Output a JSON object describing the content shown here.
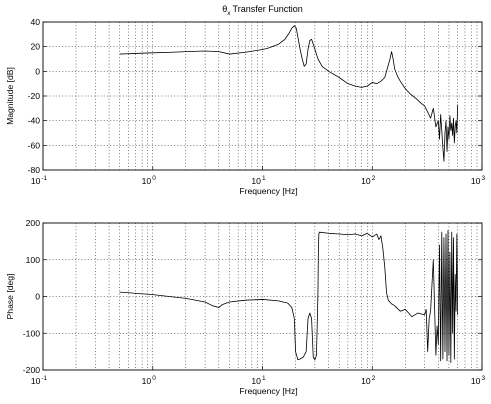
{
  "chart_data": [
    {
      "type": "line",
      "title": "θ",
      "title_subscript": "x",
      "title_suffix": "Transfer Function",
      "xlabel": "Frequency [Hz]",
      "ylabel": "Magnitude [dB]",
      "xscale": "log",
      "xlim": [
        0.1,
        1000
      ],
      "ylim": [
        -80,
        40
      ],
      "grid": true,
      "x_tick_labels": [
        {
          "base": "10",
          "exp": "-1",
          "value": 0.1
        },
        {
          "base": "10",
          "exp": "0",
          "value": 1
        },
        {
          "base": "10",
          "exp": "1",
          "value": 10
        },
        {
          "base": "10",
          "exp": "2",
          "value": 100
        },
        {
          "base": "10",
          "exp": "3",
          "value": 1000
        }
      ],
      "y_ticks": [
        40,
        20,
        0,
        -20,
        -40,
        -60,
        -80
      ],
      "series": [
        {
          "x": [
            0.5,
            0.7,
            1.0,
            1.5,
            2.0,
            3.0,
            4.0,
            5.0,
            7.0,
            9.0,
            11.0,
            14.0,
            16.0,
            17.5,
            18.5,
            19.5,
            20.3,
            21.0,
            22.0,
            23.0,
            24.0,
            25.0,
            26.0,
            27.0,
            28.0,
            29.0,
            30.0,
            32.0,
            35.0,
            40.0,
            50.0,
            60.0,
            70.0,
            80.0,
            90.0,
            100.0,
            110.0,
            120.0,
            130.0,
            140.0,
            145.0,
            150.0,
            155.0,
            160.0,
            170.0,
            180.0,
            200.0,
            220.0,
            250.0,
            280.0,
            300.0,
            320.0,
            340.0,
            360.0,
            380.0,
            400.0,
            410.0,
            420.0,
            430.0,
            440.0,
            450.0,
            460.0,
            470.0,
            480.0,
            490.0,
            500.0,
            510.0,
            520.0,
            530.0,
            540.0,
            550.0,
            560.0,
            570.0,
            580.0,
            590.0,
            600.0
          ],
          "y": [
            14,
            14.5,
            15,
            15.5,
            16,
            16.5,
            16,
            14,
            15.5,
            17,
            18.5,
            22,
            26,
            31,
            35,
            37,
            35,
            28,
            18,
            10,
            4,
            6,
            18,
            25,
            26,
            22,
            18,
            10,
            4,
            0,
            -5,
            -10,
            -12,
            -13,
            -12,
            -9,
            -10,
            -8,
            -5,
            5,
            10,
            16,
            10,
            2,
            -4,
            -8,
            -14,
            -18,
            -22,
            -26,
            -28,
            -33,
            -38,
            -30,
            -45,
            -40,
            -55,
            -35,
            -48,
            -62,
            -73,
            -50,
            -40,
            -65,
            -45,
            -55,
            -36,
            -48,
            -42,
            -52,
            -38,
            -58,
            -45,
            -40,
            -50,
            -27
          ]
        }
      ]
    },
    {
      "type": "line",
      "xlabel": "Frequency [Hz]",
      "ylabel": "Phase [deg]",
      "xscale": "log",
      "xlim": [
        0.1,
        1000
      ],
      "ylim": [
        -200,
        200
      ],
      "grid": true,
      "x_tick_labels": [
        {
          "base": "10",
          "exp": "-1",
          "value": 0.1
        },
        {
          "base": "10",
          "exp": "0",
          "value": 1
        },
        {
          "base": "10",
          "exp": "1",
          "value": 10
        },
        {
          "base": "10",
          "exp": "2",
          "value": 100
        },
        {
          "base": "10",
          "exp": "3",
          "value": 1000
        }
      ],
      "y_ticks": [
        200,
        100,
        0,
        -100,
        -200
      ],
      "series": [
        {
          "x": [
            0.5,
            1.0,
            2.0,
            3.0,
            3.5,
            4.0,
            4.3,
            5.0,
            7.0,
            10.0,
            14.0,
            17.0,
            18.5,
            19.5,
            20.0,
            21.0,
            22.0,
            23.5,
            25.0,
            26.0,
            27.0,
            28.0,
            29.0,
            30.0,
            31.0,
            31.5,
            32.0,
            32.3,
            32.6,
            33.0,
            40.0,
            50.0,
            60.0,
            70.0,
            80.0,
            90.0,
            100.0,
            110.0,
            115.0,
            120.0,
            125.0,
            130.0,
            135.0,
            140.0,
            150.0,
            160.0,
            180.0,
            200.0,
            230.0,
            260.0,
            300.0,
            310.0,
            320.0,
            330.0,
            340.0,
            360.0,
            380.0,
            390.0,
            400.0,
            410.0,
            420.0,
            430.0,
            440.0,
            450.0,
            460.0,
            470.0,
            480.0,
            490.0,
            500.0,
            510.0,
            520.0,
            530.0,
            540.0,
            550.0,
            560.0,
            570.0,
            580.0,
            590.0,
            600.0
          ],
          "y": [
            12,
            5,
            -5,
            -15,
            -25,
            -30,
            -22,
            -15,
            -10,
            -8,
            -12,
            -18,
            -30,
            -60,
            -150,
            -172,
            -170,
            -165,
            -150,
            -60,
            -45,
            -60,
            -165,
            -172,
            -160,
            -80,
            10,
            120,
            170,
            175,
            172,
            170,
            168,
            170,
            165,
            172,
            162,
            170,
            155,
            165,
            130,
            80,
            10,
            -10,
            -20,
            -25,
            -40,
            -35,
            -55,
            -45,
            -50,
            -35,
            -150,
            -60,
            -40,
            100,
            -160,
            -80,
            -130,
            140,
            -175,
            175,
            -170,
            160,
            -150,
            170,
            -175,
            180,
            -160,
            120,
            -180,
            175,
            -100,
            160,
            -170,
            60,
            -40,
            170,
            -50
          ]
        }
      ]
    }
  ]
}
